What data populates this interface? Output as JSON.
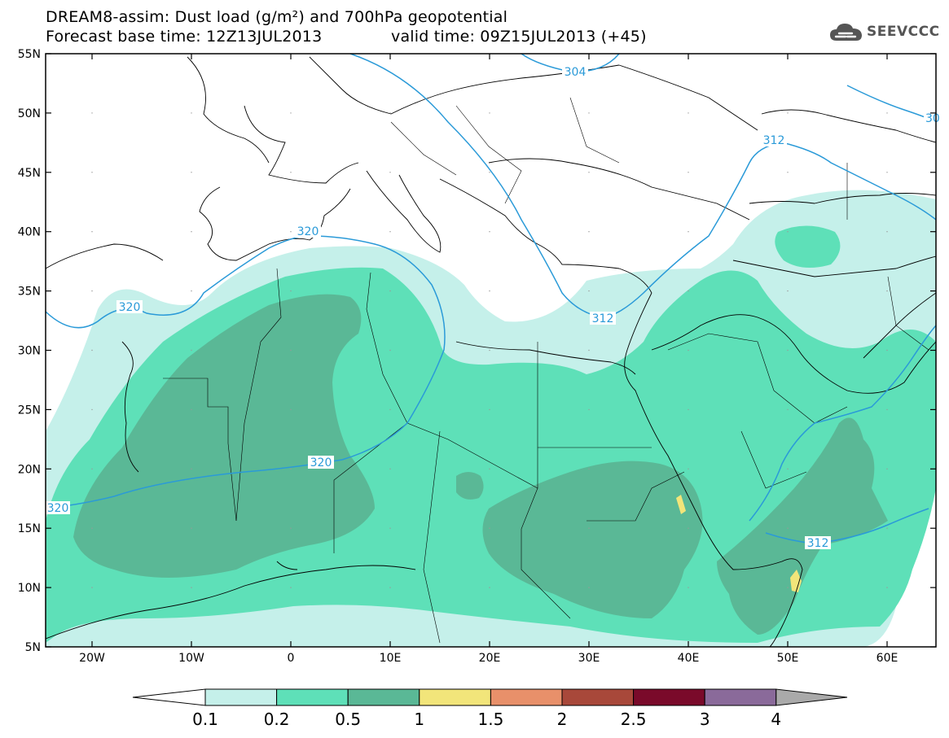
{
  "title": {
    "line1": "DREAM8-assim: Dust load (g/m²) and 700hPa geopotential",
    "line2_base": "Forecast base time: 12Z13JUL2013",
    "line2_valid": "valid time: 09Z15JUL2013 (+45)"
  },
  "logo": {
    "text": "SEEVCCC"
  },
  "map": {
    "lat_labels": [
      "55N",
      "50N",
      "45N",
      "40N",
      "35N",
      "30N",
      "25N",
      "20N",
      "15N",
      "10N",
      "5N"
    ],
    "lon_labels": [
      "20W",
      "10W",
      "0",
      "10E",
      "20E",
      "30E",
      "40E",
      "50E",
      "60E"
    ],
    "contour_labels": [
      "304",
      "312",
      "320",
      "320",
      "320",
      "320",
      "312",
      "312",
      "30"
    ]
  },
  "colorbar": {
    "ticks": [
      "0.1",
      "0.2",
      "0.5",
      "1",
      "1.5",
      "2",
      "2.5",
      "3",
      "4"
    ],
    "colors": [
      "#ffffff",
      "#c5f0ea",
      "#5ee0b8",
      "#5ab896",
      "#f2e57a",
      "#e8906a",
      "#a8483a",
      "#7a0a2a",
      "#8a6a9a",
      "#aaaaaa"
    ]
  },
  "colors": {
    "dust_low": "#c5f0ea",
    "dust_mid": "#5ee0b8",
    "dust_high": "#5ab896",
    "dust_peak": "#f2e57a",
    "contour": "#2a9ad8",
    "borders": "#000000"
  }
}
